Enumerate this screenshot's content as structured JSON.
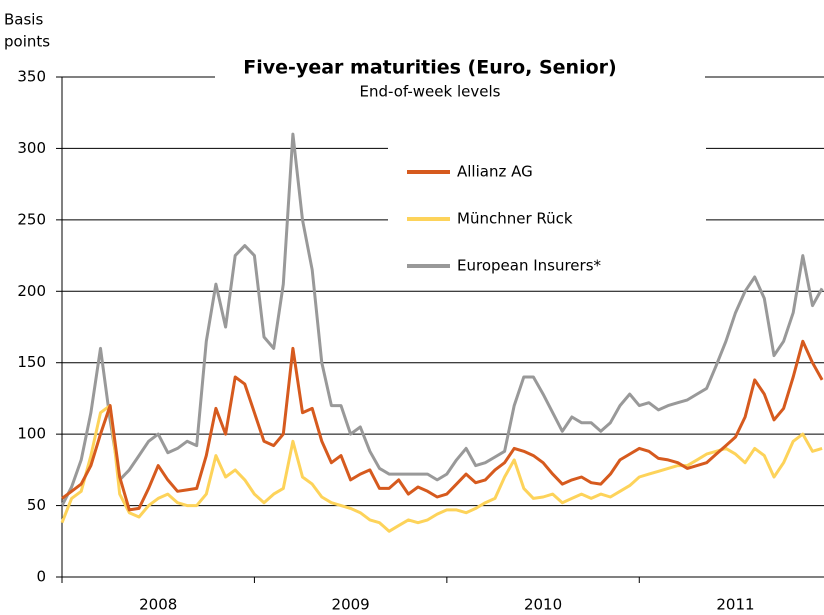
{
  "chart_data": {
    "type": "line",
    "title": "Five-year maturities (Euro, Senior)",
    "subtitle": "End-of-week levels",
    "ylabel": [
      "Basis",
      "points"
    ],
    "xlim": [
      2008,
      2011.96
    ],
    "xticks": [
      2008,
      2009,
      2010,
      2011
    ],
    "xlabels": [
      {
        "value": 2008.5,
        "label": "2008"
      },
      {
        "value": 2009.5,
        "label": "2009"
      },
      {
        "value": 2010.5,
        "label": "2010"
      },
      {
        "value": 2011.5,
        "label": "2011"
      }
    ],
    "ylim": [
      0,
      350
    ],
    "yticks": [
      0,
      50,
      100,
      150,
      200,
      250,
      300,
      350
    ],
    "grid": true,
    "x": [
      2008.0,
      2008.05,
      2008.1,
      2008.15,
      2008.2,
      2008.25,
      2008.3,
      2008.35,
      2008.4,
      2008.45,
      2008.5,
      2008.55,
      2008.6,
      2008.65,
      2008.7,
      2008.75,
      2008.8,
      2008.85,
      2008.9,
      2008.95,
      2009.0,
      2009.05,
      2009.1,
      2009.15,
      2009.2,
      2009.25,
      2009.3,
      2009.35,
      2009.4,
      2009.45,
      2009.5,
      2009.55,
      2009.6,
      2009.65,
      2009.7,
      2009.75,
      2009.8,
      2009.85,
      2009.9,
      2009.95,
      2010.0,
      2010.05,
      2010.1,
      2010.15,
      2010.2,
      2010.25,
      2010.3,
      2010.35,
      2010.4,
      2010.45,
      2010.5,
      2010.55,
      2010.6,
      2010.65,
      2010.7,
      2010.75,
      2010.8,
      2010.85,
      2010.9,
      2010.95,
      2011.0,
      2011.05,
      2011.1,
      2011.15,
      2011.2,
      2011.25,
      2011.3,
      2011.35,
      2011.4,
      2011.45,
      2011.5,
      2011.55,
      2011.6,
      2011.65,
      2011.7,
      2011.75,
      2011.8,
      2011.85,
      2011.9,
      2011.95
    ],
    "series": [
      {
        "name": "European Insurers*",
        "color": "#999999",
        "values": [
          50,
          63,
          82,
          115,
          160,
          110,
          68,
          75,
          85,
          95,
          100,
          87,
          90,
          95,
          92,
          165,
          205,
          175,
          225,
          232,
          225,
          168,
          160,
          205,
          310,
          250,
          215,
          150,
          120,
          120,
          100,
          105,
          88,
          76,
          72,
          72,
          72,
          72,
          72,
          68,
          72,
          82,
          90,
          78,
          80,
          84,
          88,
          120,
          140,
          140,
          128,
          115,
          102,
          112,
          108,
          108,
          102,
          108,
          120,
          128,
          120,
          122,
          117,
          120,
          122,
          124,
          128,
          132,
          148,
          165,
          185,
          200,
          210,
          195,
          155,
          165,
          185,
          225,
          190,
          202
        ]
      },
      {
        "name": "Münchner Rück",
        "color": "#fdd35a",
        "values": [
          38,
          55,
          60,
          85,
          115,
          120,
          58,
          45,
          42,
          50,
          55,
          58,
          52,
          50,
          50,
          58,
          85,
          70,
          75,
          68,
          58,
          52,
          58,
          62,
          95,
          70,
          65,
          56,
          52,
          50,
          48,
          45,
          40,
          38,
          32,
          36,
          40,
          38,
          40,
          44,
          47,
          47,
          45,
          48,
          52,
          55,
          70,
          82,
          62,
          55,
          56,
          58,
          52,
          55,
          58,
          55,
          58,
          56,
          60,
          64,
          70,
          72,
          74,
          76,
          78,
          78,
          82,
          86,
          88,
          90,
          86,
          80,
          90,
          85,
          70,
          80,
          95,
          100,
          88,
          90
        ]
      },
      {
        "name": "Allianz AG",
        "color": "#d65a1e",
        "values": [
          55,
          60,
          65,
          78,
          100,
          120,
          70,
          47,
          48,
          62,
          78,
          68,
          60,
          61,
          62,
          85,
          118,
          100,
          140,
          135,
          115,
          95,
          92,
          100,
          160,
          115,
          118,
          95,
          80,
          85,
          68,
          72,
          75,
          62,
          62,
          68,
          58,
          63,
          60,
          56,
          58,
          65,
          72,
          66,
          68,
          75,
          80,
          90,
          88,
          85,
          80,
          72,
          65,
          68,
          70,
          66,
          65,
          72,
          82,
          86,
          90,
          88,
          83,
          82,
          80,
          76,
          78,
          80,
          86,
          92,
          98,
          112,
          138,
          128,
          110,
          118,
          140,
          165,
          150,
          138
        ]
      }
    ]
  }
}
